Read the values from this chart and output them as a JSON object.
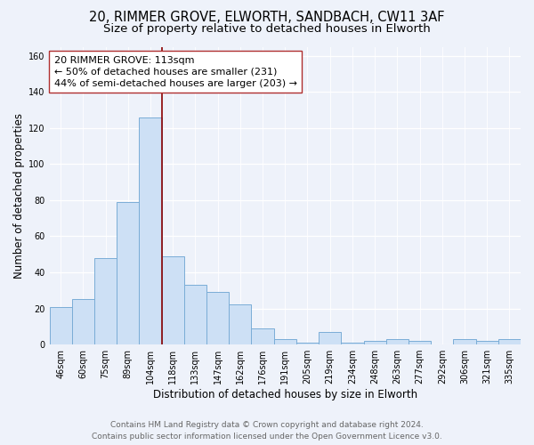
{
  "title_line1": "20, RIMMER GROVE, ELWORTH, SANDBACH, CW11 3AF",
  "title_line2": "Size of property relative to detached houses in Elworth",
  "xlabel": "Distribution of detached houses by size in Elworth",
  "ylabel": "Number of detached properties",
  "bar_labels": [
    "46sqm",
    "60sqm",
    "75sqm",
    "89sqm",
    "104sqm",
    "118sqm",
    "133sqm",
    "147sqm",
    "162sqm",
    "176sqm",
    "191sqm",
    "205sqm",
    "219sqm",
    "234sqm",
    "248sqm",
    "263sqm",
    "277sqm",
    "292sqm",
    "306sqm",
    "321sqm",
    "335sqm"
  ],
  "bar_values": [
    21,
    25,
    48,
    79,
    126,
    49,
    33,
    29,
    22,
    9,
    3,
    1,
    7,
    1,
    2,
    3,
    2,
    0,
    3,
    2,
    3
  ],
  "bar_color": "#cde0f5",
  "bar_edge_color": "#7aadd6",
  "annotation_line_color": "#8b0000",
  "annotation_box_text": "20 RIMMER GROVE: 113sqm\n← 50% of detached houses are smaller (231)\n44% of semi-detached houses are larger (203) →",
  "ylim": [
    0,
    165
  ],
  "yticks": [
    0,
    20,
    40,
    60,
    80,
    100,
    120,
    140,
    160
  ],
  "background_color": "#eef2fa",
  "plot_bg_color": "#eef2fa",
  "grid_color": "#d0d8e8",
  "footer_line1": "Contains HM Land Registry data © Crown copyright and database right 2024.",
  "footer_line2": "Contains public sector information licensed under the Open Government Licence v3.0.",
  "title_fontsize": 10.5,
  "subtitle_fontsize": 9.5,
  "axis_label_fontsize": 8.5,
  "tick_fontsize": 7,
  "annotation_fontsize": 8,
  "footer_fontsize": 6.5
}
